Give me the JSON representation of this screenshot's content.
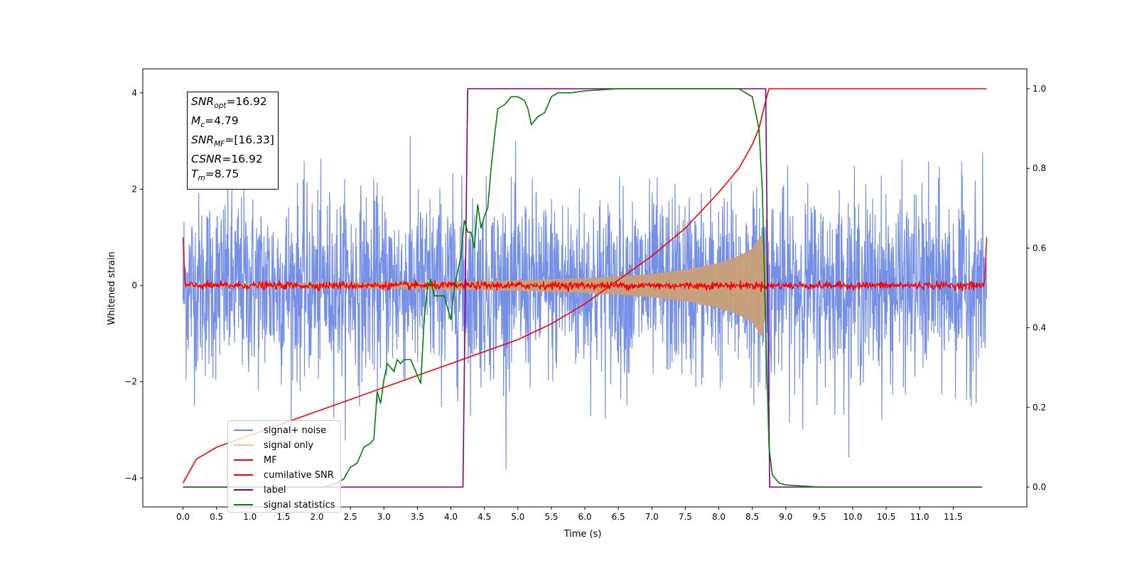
{
  "chart_data": {
    "type": "line",
    "xlabel": "Time (s)",
    "ylabel": "Whitened strain",
    "xlim": [
      -0.6,
      12.6
    ],
    "ylim": [
      -4.6,
      4.5
    ],
    "y2lim": [
      -0.05,
      1.05
    ],
    "x_ticks": [
      "0.0",
      "0.5",
      "1.0",
      "1.5",
      "2.0",
      "2.5",
      "3.0",
      "3.5",
      "4.0",
      "4.5",
      "5.0",
      "5.5",
      "6.0",
      "6.5",
      "7.0",
      "7.5",
      "8.0",
      "8.5",
      "9.0",
      "9.5",
      "10.0",
      "10.5",
      "11.0",
      "11.5"
    ],
    "y_ticks": [
      "4",
      "2",
      "0",
      "−2",
      "−4"
    ],
    "y2_ticks": [
      "1.0",
      "0.8",
      "0.6",
      "0.4",
      "0.2",
      "0.0"
    ],
    "grid": false,
    "legend_position": "lower-left",
    "info_box": {
      "snr_opt": {
        "sym": "SNR",
        "sub": "opt",
        "value": "=16.92"
      },
      "mc": {
        "sym": "M",
        "sub": "c",
        "value": "=4.79"
      },
      "snr_mf": {
        "sym": "SNR",
        "sub": "MF",
        "value": "=[16.33]"
      },
      "csnr": {
        "sym": "CSNR",
        "value": "=16.92"
      },
      "tm": {
        "sym": "T",
        "sub": "m",
        "value": "=8.75"
      }
    },
    "series": [
      {
        "name": "signal+ noise",
        "color": "#6f8ae6",
        "axis": "left",
        "description_values": {
          "x_range": [
            0.0,
            12.0
          ],
          "amplitude_peak": 4.1,
          "noise_sigma": 1.0
        }
      },
      {
        "name": "signal only",
        "color": "#f5a65b",
        "axis": "left",
        "envelope": [
          [
            0.0,
            0.03
          ],
          [
            2.0,
            0.06
          ],
          [
            4.0,
            0.09
          ],
          [
            5.0,
            0.12
          ],
          [
            6.0,
            0.17
          ],
          [
            6.5,
            0.21
          ],
          [
            7.0,
            0.27
          ],
          [
            7.5,
            0.36
          ],
          [
            8.0,
            0.52
          ],
          [
            8.3,
            0.68
          ],
          [
            8.5,
            0.85
          ],
          [
            8.65,
            1.2
          ],
          [
            8.7,
            0.6
          ],
          [
            8.72,
            0.0
          ]
        ]
      },
      {
        "name": "MF",
        "color": "#ff0000",
        "axis": "left",
        "description_values": {
          "level": 0.0,
          "edge_value": 1.0
        }
      },
      {
        "name": "cumilative SNR",
        "color": "#ff0000",
        "axis": "right",
        "points": [
          [
            0.0,
            0.01
          ],
          [
            0.2,
            0.07
          ],
          [
            0.5,
            0.1
          ],
          [
            1.0,
            0.13
          ],
          [
            1.5,
            0.16
          ],
          [
            2.0,
            0.19
          ],
          [
            2.5,
            0.22
          ],
          [
            3.0,
            0.25
          ],
          [
            3.5,
            0.28
          ],
          [
            4.0,
            0.31
          ],
          [
            4.5,
            0.34
          ],
          [
            5.0,
            0.37
          ],
          [
            5.5,
            0.41
          ],
          [
            6.0,
            0.46
          ],
          [
            6.5,
            0.52
          ],
          [
            7.0,
            0.58
          ],
          [
            7.5,
            0.65
          ],
          [
            8.0,
            0.74
          ],
          [
            8.3,
            0.8
          ],
          [
            8.5,
            0.86
          ],
          [
            8.6,
            0.9
          ],
          [
            8.7,
            0.97
          ],
          [
            8.75,
            1.0
          ],
          [
            12.0,
            1.0
          ]
        ]
      },
      {
        "name": "label",
        "color": "#800080",
        "axis": "right",
        "points": [
          [
            0.0,
            0.0
          ],
          [
            4.18,
            0.0
          ],
          [
            4.18,
            0.0
          ],
          [
            4.25,
            1.0
          ],
          [
            8.7,
            1.0
          ],
          [
            8.76,
            0.0
          ],
          [
            11.93,
            0.0
          ]
        ]
      },
      {
        "name": "signal statistics",
        "color": "#008000",
        "axis": "right",
        "points": [
          [
            0.0,
            0.0
          ],
          [
            0.5,
            0.0
          ],
          [
            1.0,
            0.0
          ],
          [
            1.5,
            0.0
          ],
          [
            2.0,
            0.0
          ],
          [
            2.1,
            0.0
          ],
          [
            2.2,
            0.005
          ],
          [
            2.3,
            0.01
          ],
          [
            2.4,
            0.02
          ],
          [
            2.5,
            0.05
          ],
          [
            2.6,
            0.06
          ],
          [
            2.7,
            0.1
          ],
          [
            2.8,
            0.11
          ],
          [
            2.85,
            0.12
          ],
          [
            2.9,
            0.24
          ],
          [
            2.95,
            0.21
          ],
          [
            3.0,
            0.27
          ],
          [
            3.05,
            0.31
          ],
          [
            3.1,
            0.3
          ],
          [
            3.15,
            0.29
          ],
          [
            3.2,
            0.32
          ],
          [
            3.25,
            0.31
          ],
          [
            3.3,
            0.32
          ],
          [
            3.4,
            0.32
          ],
          [
            3.5,
            0.28
          ],
          [
            3.55,
            0.26
          ],
          [
            3.6,
            0.42
          ],
          [
            3.65,
            0.5
          ],
          [
            3.7,
            0.52
          ],
          [
            3.75,
            0.48
          ],
          [
            3.8,
            0.48
          ],
          [
            3.9,
            0.48
          ],
          [
            4.0,
            0.42
          ],
          [
            4.05,
            0.5
          ],
          [
            4.1,
            0.54
          ],
          [
            4.15,
            0.58
          ],
          [
            4.2,
            0.67
          ],
          [
            4.25,
            0.64
          ],
          [
            4.3,
            0.64
          ],
          [
            4.35,
            0.6
          ],
          [
            4.4,
            0.71
          ],
          [
            4.45,
            0.65
          ],
          [
            4.5,
            0.68
          ],
          [
            4.55,
            0.7
          ],
          [
            4.6,
            0.8
          ],
          [
            4.65,
            0.88
          ],
          [
            4.7,
            0.95
          ],
          [
            4.8,
            0.96
          ],
          [
            4.9,
            0.98
          ],
          [
            5.0,
            0.98
          ],
          [
            5.1,
            0.97
          ],
          [
            5.15,
            0.95
          ],
          [
            5.2,
            0.91
          ],
          [
            5.3,
            0.93
          ],
          [
            5.4,
            0.94
          ],
          [
            5.5,
            0.98
          ],
          [
            5.6,
            0.99
          ],
          [
            5.8,
            0.99
          ],
          [
            6.0,
            0.995
          ],
          [
            6.5,
            1.0
          ],
          [
            7.0,
            1.0
          ],
          [
            7.5,
            1.0
          ],
          [
            8.0,
            1.0
          ],
          [
            8.3,
            1.0
          ],
          [
            8.4,
            0.99
          ],
          [
            8.5,
            0.98
          ],
          [
            8.6,
            0.9
          ],
          [
            8.65,
            0.75
          ],
          [
            8.7,
            0.4
          ],
          [
            8.75,
            0.1
          ],
          [
            8.8,
            0.03
          ],
          [
            8.9,
            0.01
          ],
          [
            9.0,
            0.005
          ],
          [
            9.5,
            0.0
          ],
          [
            10.0,
            0.0
          ],
          [
            11.0,
            0.0
          ],
          [
            11.93,
            0.0
          ]
        ]
      }
    ]
  },
  "legend": {
    "items": [
      {
        "label": "signal+ noise",
        "color": "#6f8ae6"
      },
      {
        "label": "signal only",
        "color": "#f9c38a"
      },
      {
        "label": "MF",
        "color": "#ff0000"
      },
      {
        "label": "cumilative SNR",
        "color": "#ff0000"
      },
      {
        "label": "label",
        "color": "#800080"
      },
      {
        "label": "signal statistics",
        "color": "#008000"
      }
    ]
  }
}
